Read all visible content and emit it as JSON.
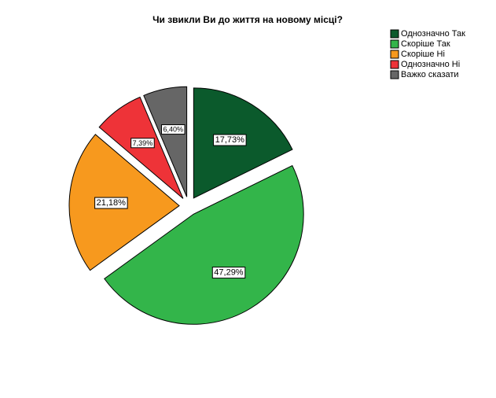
{
  "chart_data": {
    "type": "pie",
    "title": "Чи звикли Ви до життя на новому місці?",
    "categories": [
      "Однозначно Так",
      "Скоріше Так",
      "Скоріше Ні",
      "Однозначно Ні",
      "Важко сказати"
    ],
    "values": [
      17.73,
      47.29,
      21.18,
      7.39,
      6.4
    ],
    "value_labels": [
      "17,73%",
      "47,29%",
      "21,18%",
      "7,39%",
      "6,40%"
    ],
    "colors": [
      "#0b5a2c",
      "#33b54a",
      "#f7991e",
      "#ee3338",
      "#666666"
    ]
  }
}
